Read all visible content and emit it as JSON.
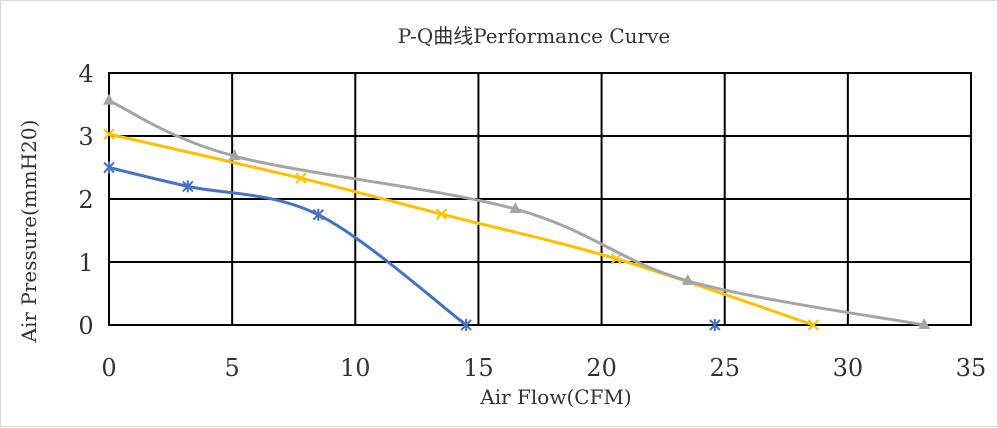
{
  "chart_data": {
    "type": "line",
    "title": "P-Q曲线Performance Curve",
    "xlabel": "Air Flow(CFM)",
    "ylabel": "Air Pressure(mmH20)",
    "xlim": [
      0,
      35
    ],
    "ylim": [
      0,
      4
    ],
    "xticks": [
      0,
      5,
      10,
      15,
      20,
      25,
      30,
      35
    ],
    "yticks": [
      0,
      1,
      2,
      3,
      4
    ],
    "grid": true,
    "legend": "none",
    "smooth": true,
    "series": [
      {
        "name": "series-blue",
        "color": "#4472c4",
        "marker": "asterisk",
        "x": [
          0,
          3.2,
          8.5,
          14.5
        ],
        "y": [
          2.5,
          2.2,
          1.75,
          0
        ],
        "isolated_x": [
          24.6
        ],
        "isolated_y": [
          0
        ]
      },
      {
        "name": "series-yellow",
        "color": "#ffc000",
        "marker": "x",
        "x": [
          0,
          7.8,
          13.5,
          20.6,
          28.6
        ],
        "y": [
          3.03,
          2.33,
          1.76,
          1.05,
          0
        ]
      },
      {
        "name": "series-gray",
        "color": "#a5a5a5",
        "marker": "triangle",
        "x": [
          0,
          5.1,
          16.5,
          23.5,
          33.1
        ],
        "y": [
          3.56,
          2.68,
          1.84,
          0.7,
          0
        ]
      }
    ]
  }
}
